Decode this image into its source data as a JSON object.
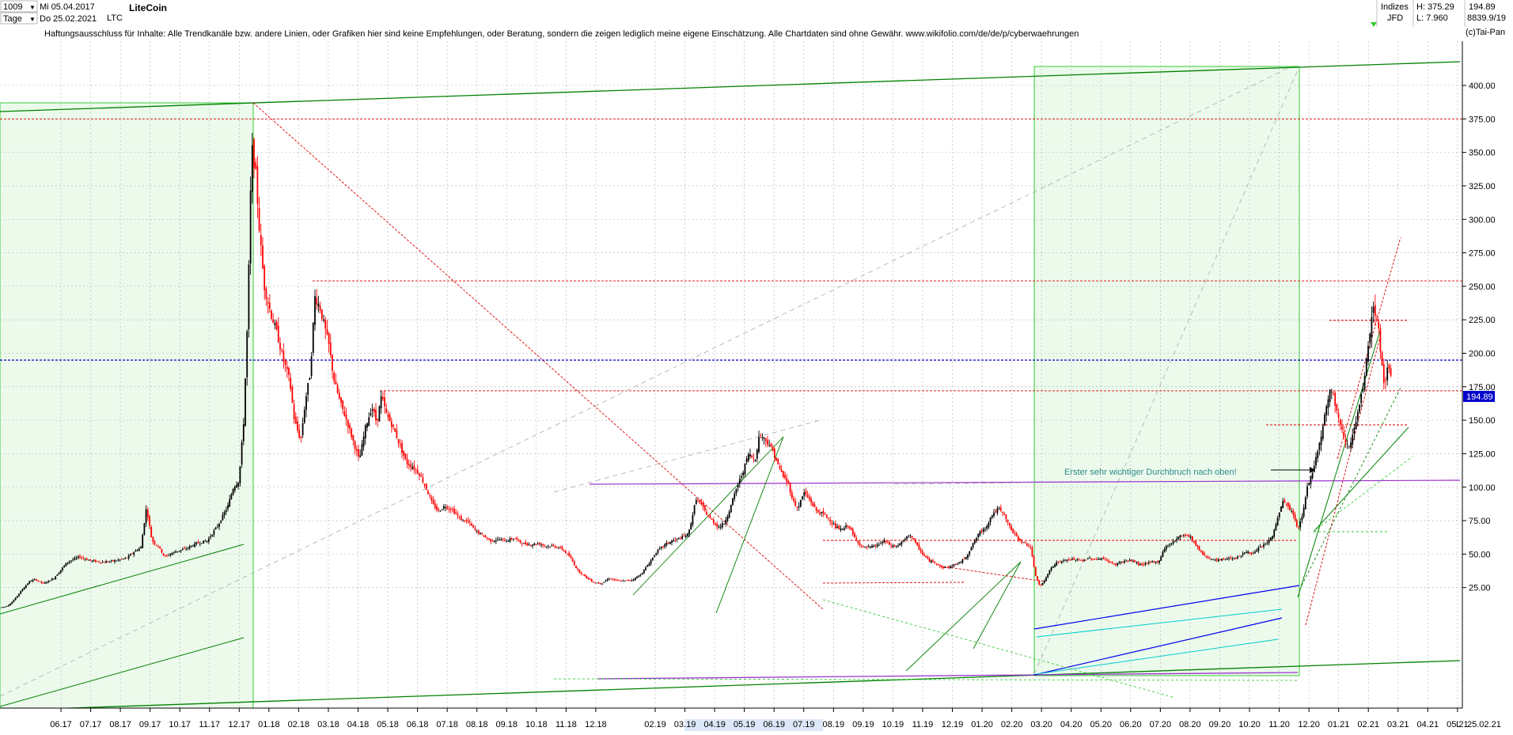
{
  "header": {
    "bar_count": "1009",
    "period": "Tage",
    "start_date": "Mi 05.04.2017",
    "end_date": "Do 25.02.2021",
    "symbol": "LTC",
    "title": "LiteCoin",
    "disclaimer": "Haftungsausschluss für Inhalte: Alle Trendkanäle bzw. andere Linien, oder Grafiken hier sind keine Empfehlungen, oder Beratung, sondern die zeigen lediglich meine eigene Einschätzung. Alle Chartdaten sind ohne Gewähr.  www.wikifolio.com/de/de/p/cyberwaehrungen",
    "source_top": "Indizes",
    "source_bottom": "JFD",
    "high": "H: 375.29",
    "low": "L: 7.960",
    "last_value": "194.89",
    "index_value": "8839.9/19",
    "brand": "(c)Tai-Pan",
    "corner_date": "25.02.21",
    "corner_l": "L"
  },
  "colors": {
    "candle_up": "#000000",
    "candle_down": "#ff0000",
    "grid": "#b0b0b0",
    "trend_green": "#008000",
    "box_fill": "#ecfaec",
    "resistance_red": "#dd0000",
    "purple": "#9933cc",
    "blue": "#0000ee",
    "cyan": "#00cccc",
    "current_line": "#0000cc",
    "annotation": "#2e8b8b"
  },
  "chart_data": {
    "type": "candlestick",
    "title": "LiteCoin",
    "ylim": [
      0,
      420
    ],
    "y_ticks": [
      25,
      50,
      75,
      100,
      125,
      150,
      175,
      200,
      225,
      250,
      275,
      300,
      325,
      350,
      375,
      400
    ],
    "y_tick_labels": [
      "25.00",
      "50.00",
      "75.00",
      "100.00",
      "125.00",
      "150.00",
      "175.00",
      "200.00",
      "225.00",
      "250.00",
      "275.00",
      "300.00",
      "325.00",
      "350.00",
      "375.00",
      "400.00"
    ],
    "x_tick_labels": [
      "06.17",
      "07.17",
      "08.17",
      "09.17",
      "10.17",
      "11.17",
      "12.17",
      "01.18",
      "02.18",
      "03.18",
      "04.18",
      "05.18",
      "06.18",
      "07.18",
      "08.18",
      "09.18",
      "10.18",
      "11.18",
      "12.18",
      "02.19",
      "03.19",
      "04.19",
      "05.19",
      "06.19",
      "07.19",
      "08.19",
      "09.19",
      "10.19",
      "11.19",
      "12.19",
      "01.20",
      "02.20",
      "03.20",
      "04.20",
      "05.20",
      "06.20",
      "07.20",
      "08.20",
      "09.20",
      "10.20",
      "11.20",
      "12.20",
      "01.21",
      "02.21",
      "03.21",
      "04.21",
      "05.21"
    ],
    "current_price": 194.89,
    "current_price_label": "194.89",
    "annotation": "Erster sehr wichtiger Durchbruch nach oben!",
    "price_path": [
      [
        0,
        10
      ],
      [
        8,
        11
      ],
      [
        15,
        14
      ],
      [
        22,
        19
      ],
      [
        30,
        25
      ],
      [
        38,
        30
      ],
      [
        45,
        31
      ],
      [
        55,
        28
      ],
      [
        68,
        32
      ],
      [
        85,
        44
      ],
      [
        100,
        48
      ],
      [
        115,
        45
      ],
      [
        130,
        44
      ],
      [
        145,
        45
      ],
      [
        160,
        47
      ],
      [
        170,
        52
      ],
      [
        178,
        55
      ],
      [
        185,
        85
      ],
      [
        192,
        60
      ],
      [
        200,
        56
      ],
      [
        208,
        48
      ],
      [
        222,
        52
      ],
      [
        235,
        54
      ],
      [
        248,
        58
      ],
      [
        262,
        60
      ],
      [
        276,
        72
      ],
      [
        288,
        86
      ],
      [
        295,
        100
      ],
      [
        302,
        105
      ],
      [
        308,
        150
      ],
      [
        313,
        228
      ],
      [
        318,
        355
      ],
      [
        323,
        335
      ],
      [
        328,
        290
      ],
      [
        334,
        250
      ],
      [
        342,
        230
      ],
      [
        350,
        215
      ],
      [
        358,
        195
      ],
      [
        366,
        180
      ],
      [
        372,
        150
      ],
      [
        380,
        135
      ],
      [
        386,
        165
      ],
      [
        392,
        185
      ],
      [
        398,
        242
      ],
      [
        404,
        235
      ],
      [
        410,
        220
      ],
      [
        416,
        205
      ],
      [
        422,
        180
      ],
      [
        430,
        163
      ],
      [
        438,
        150
      ],
      [
        446,
        135
      ],
      [
        454,
        120
      ],
      [
        462,
        145
      ],
      [
        470,
        160
      ],
      [
        476,
        148
      ],
      [
        482,
        168
      ],
      [
        488,
        155
      ],
      [
        494,
        148
      ],
      [
        500,
        140
      ],
      [
        506,
        130
      ],
      [
        514,
        118
      ],
      [
        522,
        115
      ],
      [
        530,
        110
      ],
      [
        538,
        100
      ],
      [
        546,
        88
      ],
      [
        554,
        82
      ],
      [
        562,
        86
      ],
      [
        572,
        83
      ],
      [
        582,
        76
      ],
      [
        592,
        74
      ],
      [
        600,
        68
      ],
      [
        610,
        64
      ],
      [
        620,
        60
      ],
      [
        630,
        61
      ],
      [
        640,
        60
      ],
      [
        650,
        62
      ],
      [
        660,
        58
      ],
      [
        670,
        57
      ],
      [
        680,
        58
      ],
      [
        690,
        56
      ],
      [
        700,
        56
      ],
      [
        710,
        54
      ],
      [
        720,
        48
      ],
      [
        730,
        38
      ],
      [
        740,
        33
      ],
      [
        750,
        29
      ],
      [
        760,
        28
      ],
      [
        770,
        32
      ],
      [
        780,
        30
      ],
      [
        790,
        30
      ],
      [
        800,
        31
      ],
      [
        810,
        35
      ],
      [
        820,
        43
      ],
      [
        830,
        52
      ],
      [
        840,
        57
      ],
      [
        850,
        60
      ],
      [
        860,
        62
      ],
      [
        870,
        65
      ],
      [
        880,
        92
      ],
      [
        888,
        85
      ],
      [
        895,
        78
      ],
      [
        900,
        75
      ],
      [
        908,
        70
      ],
      [
        915,
        73
      ],
      [
        922,
        83
      ],
      [
        930,
        98
      ],
      [
        938,
        110
      ],
      [
        946,
        125
      ],
      [
        954,
        120
      ],
      [
        960,
        140
      ],
      [
        966,
        136
      ],
      [
        972,
        132
      ],
      [
        978,
        125
      ],
      [
        984,
        115
      ],
      [
        990,
        108
      ],
      [
        996,
        103
      ],
      [
        1002,
        90
      ],
      [
        1008,
        84
      ],
      [
        1016,
        96
      ],
      [
        1024,
        90
      ],
      [
        1032,
        82
      ],
      [
        1040,
        80
      ],
      [
        1048,
        76
      ],
      [
        1056,
        70
      ],
      [
        1064,
        68
      ],
      [
        1072,
        72
      ],
      [
        1080,
        62
      ],
      [
        1090,
        55
      ],
      [
        1100,
        55
      ],
      [
        1110,
        57
      ],
      [
        1118,
        60
      ],
      [
        1126,
        56
      ],
      [
        1134,
        56
      ],
      [
        1142,
        60
      ],
      [
        1150,
        65
      ],
      [
        1158,
        57
      ],
      [
        1166,
        50
      ],
      [
        1174,
        45
      ],
      [
        1182,
        44
      ],
      [
        1190,
        40
      ],
      [
        1198,
        40
      ],
      [
        1206,
        42
      ],
      [
        1214,
        44
      ],
      [
        1222,
        49
      ],
      [
        1230,
        58
      ],
      [
        1238,
        66
      ],
      [
        1246,
        70
      ],
      [
        1254,
        80
      ],
      [
        1262,
        84
      ],
      [
        1270,
        78
      ],
      [
        1278,
        68
      ],
      [
        1286,
        62
      ],
      [
        1294,
        58
      ],
      [
        1302,
        56
      ],
      [
        1308,
        35
      ],
      [
        1314,
        26
      ],
      [
        1320,
        30
      ],
      [
        1328,
        40
      ],
      [
        1336,
        44
      ],
      [
        1344,
        45
      ],
      [
        1352,
        46
      ],
      [
        1360,
        46
      ],
      [
        1368,
        45
      ],
      [
        1376,
        47
      ],
      [
        1384,
        46
      ],
      [
        1392,
        47
      ],
      [
        1400,
        45
      ],
      [
        1408,
        42
      ],
      [
        1416,
        44
      ],
      [
        1424,
        45
      ],
      [
        1432,
        45
      ],
      [
        1440,
        42
      ],
      [
        1448,
        43
      ],
      [
        1456,
        44
      ],
      [
        1464,
        44
      ],
      [
        1472,
        55
      ],
      [
        1480,
        58
      ],
      [
        1488,
        62
      ],
      [
        1496,
        65
      ],
      [
        1504,
        63
      ],
      [
        1512,
        56
      ],
      [
        1520,
        50
      ],
      [
        1528,
        47
      ],
      [
        1536,
        45
      ],
      [
        1544,
        46
      ],
      [
        1552,
        47
      ],
      [
        1560,
        47
      ],
      [
        1568,
        49
      ],
      [
        1576,
        52
      ],
      [
        1584,
        50
      ],
      [
        1592,
        55
      ],
      [
        1600,
        58
      ],
      [
        1608,
        63
      ],
      [
        1616,
        80
      ],
      [
        1622,
        90
      ],
      [
        1628,
        85
      ],
      [
        1634,
        80
      ],
      [
        1640,
        68
      ],
      [
        1646,
        80
      ],
      [
        1652,
        100
      ],
      [
        1658,
        110
      ],
      [
        1664,
        125
      ],
      [
        1670,
        140
      ],
      [
        1676,
        160
      ],
      [
        1682,
        175
      ],
      [
        1688,
        160
      ],
      [
        1694,
        145
      ],
      [
        1700,
        135
      ],
      [
        1706,
        130
      ],
      [
        1712,
        145
      ],
      [
        1718,
        160
      ],
      [
        1724,
        180
      ],
      [
        1730,
        210
      ],
      [
        1736,
        236
      ],
      [
        1742,
        218
      ],
      [
        1746,
        192
      ],
      [
        1750,
        175
      ],
      [
        1754,
        190
      ],
      [
        1758,
        180
      ]
    ],
    "horizontal_levels": [
      375,
      254,
      172
    ],
    "current_line_level": 194.89
  }
}
